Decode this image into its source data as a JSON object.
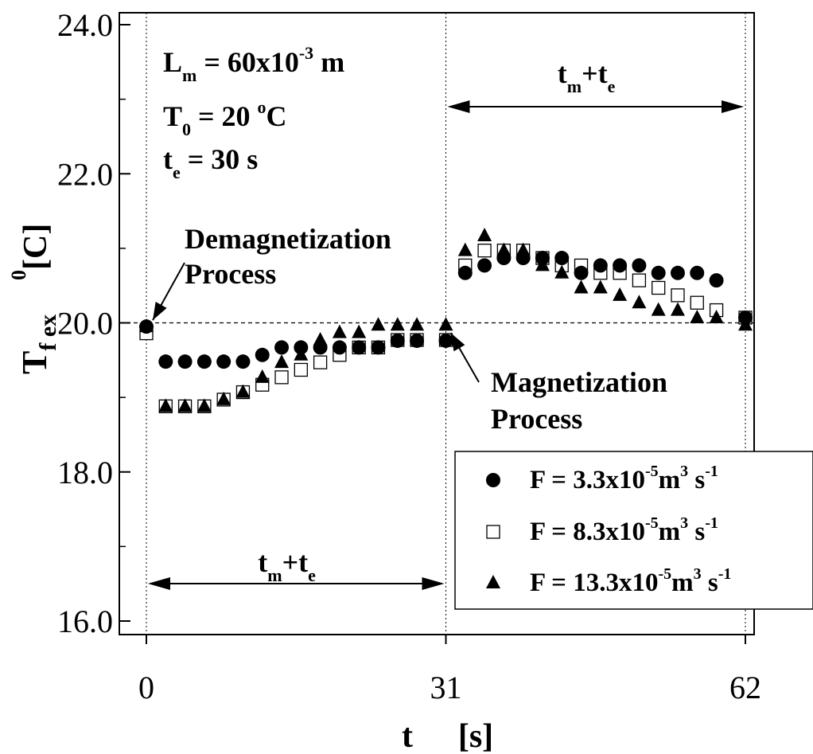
{
  "chart_data": {
    "type": "scatter",
    "title": "",
    "xlabel": "t",
    "xlabel_unit": "[s]",
    "ylabel": "T",
    "ylabel_sub": "f ex",
    "ylabel_unit_sup": "0",
    "ylabel_unit": "[C]",
    "xlim": [
      0,
      62
    ],
    "ylim": [
      16.0,
      24.0
    ],
    "x_ticks": [
      0,
      31,
      62
    ],
    "x_tick_labels": [
      "0",
      "31",
      "62"
    ],
    "y_ticks": [
      16,
      18,
      20,
      22,
      24
    ],
    "y_tick_labels": [
      "16.0",
      "18.0",
      "20.0",
      "22.0",
      "24.0"
    ],
    "reference_line_y": 20.0,
    "vertical_guides_x": [
      0,
      31,
      62
    ],
    "params": [
      {
        "pre": "L",
        "sub": "m",
        "mid": " = 60x10",
        "sup": "-3",
        "post": " m"
      },
      {
        "pre": "T",
        "sub": "0",
        "mid": " = 20 ",
        "sup": "o",
        "post": "C"
      },
      {
        "pre": "t",
        "sub": "e",
        "mid": " = 30 s",
        "sup": "",
        "post": ""
      }
    ],
    "annotations": {
      "demag": [
        "Demagnetization",
        "Process"
      ],
      "mag": [
        "Magnetization",
        "Process"
      ]
    },
    "span_labels": {
      "top": {
        "a": "t",
        "a_sub": "m",
        "plus": "+",
        "b": "t",
        "b_sub": "e",
        "from": 31,
        "to": 62
      },
      "bottom": {
        "a": "t",
        "a_sub": "m",
        "plus": "+",
        "b": "t",
        "b_sub": "e",
        "from": 0,
        "to": 31
      }
    },
    "legend_position": "bottom-right",
    "series": [
      {
        "name": "F = 3.3x10-5 m3 s-1",
        "legend": {
          "base": "F = 3.3x10",
          "exp1": "-5",
          "unit1": "m",
          "exp2": "3",
          "unit2": " s",
          "exp3": "-1"
        },
        "marker": "circle-filled",
        "x": [
          0,
          2,
          4,
          6,
          8,
          10,
          12,
          14,
          16,
          18,
          20,
          22,
          24,
          26,
          28,
          31,
          33,
          35,
          37,
          39,
          41,
          43,
          45,
          47,
          49,
          51,
          53,
          55,
          57,
          59,
          62
        ],
        "y": [
          19.95,
          19.48,
          19.48,
          19.48,
          19.48,
          19.48,
          19.57,
          19.67,
          19.67,
          19.67,
          19.67,
          19.67,
          19.67,
          19.76,
          19.76,
          19.76,
          20.67,
          20.77,
          20.87,
          20.87,
          20.87,
          20.87,
          20.67,
          20.77,
          20.77,
          20.77,
          20.67,
          20.67,
          20.67,
          20.57,
          20.07
        ]
      },
      {
        "name": "F = 8.3x10-5 m3 s-1",
        "legend": {
          "base": "F = 8.3x10",
          "exp1": "-5",
          "unit1": "m",
          "exp2": "3",
          "unit2": " s",
          "exp3": "-1"
        },
        "marker": "square-open",
        "x": [
          0,
          2,
          4,
          6,
          8,
          10,
          12,
          14,
          16,
          18,
          20,
          22,
          24,
          26,
          28,
          31,
          33,
          35,
          37,
          39,
          41,
          43,
          45,
          47,
          49,
          51,
          53,
          55,
          57,
          59,
          62
        ],
        "y": [
          19.86,
          18.88,
          18.88,
          18.88,
          18.97,
          19.07,
          19.17,
          19.27,
          19.37,
          19.47,
          19.57,
          19.67,
          19.67,
          19.77,
          19.77,
          19.77,
          20.77,
          20.97,
          20.97,
          20.97,
          20.87,
          20.77,
          20.77,
          20.67,
          20.67,
          20.57,
          20.47,
          20.37,
          20.27,
          20.17,
          20.07
        ]
      },
      {
        "name": "F = 13.3x10-5 m3 s-1",
        "legend": {
          "base": "F = 13.3x10",
          "exp1": "-5",
          "unit1": "m",
          "exp2": "3",
          "unit2": " s",
          "exp3": "-1"
        },
        "marker": "triangle-filled",
        "x": [
          0,
          2,
          4,
          6,
          8,
          10,
          12,
          14,
          16,
          18,
          20,
          22,
          24,
          26,
          28,
          31,
          33,
          35,
          37,
          39,
          41,
          43,
          45,
          47,
          49,
          51,
          53,
          55,
          57,
          59,
          62
        ],
        "y": [
          19.95,
          18.88,
          18.88,
          18.88,
          18.97,
          19.07,
          19.27,
          19.47,
          19.57,
          19.77,
          19.87,
          19.87,
          19.97,
          19.97,
          19.97,
          19.97,
          20.97,
          21.17,
          20.97,
          20.97,
          20.77,
          20.67,
          20.47,
          20.47,
          20.37,
          20.27,
          20.17,
          20.17,
          20.07,
          20.07,
          19.97
        ]
      }
    ]
  }
}
